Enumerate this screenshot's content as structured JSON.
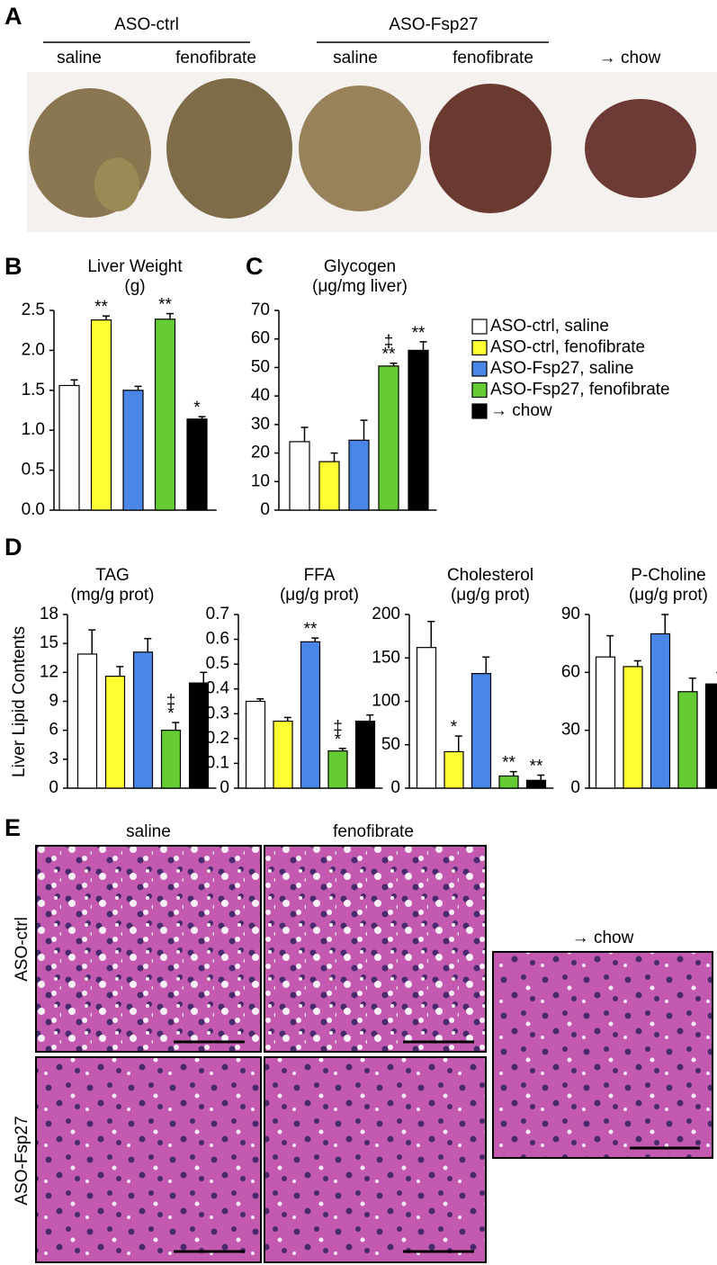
{
  "panel_labels": [
    "A",
    "B",
    "C",
    "D",
    "E"
  ],
  "photo_a": {
    "groups": [
      "ASO-ctrl",
      "ASO-Fsp27"
    ],
    "treatments": [
      [
        "saline",
        "fenofibrate"
      ],
      [
        "saline",
        "fenofibrate"
      ]
    ],
    "chow": "→ chow"
  },
  "legend": {
    "names": [
      "ASO-ctrl, saline",
      "ASO-ctrl, fenofibrate",
      "ASO-Fsp27, saline",
      "ASO-Fsp27, fenofibrate",
      "→ chow"
    ],
    "colors": [
      "#ffffff",
      "#ffff33",
      "#4a86e8",
      "#66cc33",
      "#000000"
    ]
  },
  "panel_d_ylabel": "Liver Lipid Contents",
  "chart_data": [
    {
      "type": "bar",
      "title": "Liver Weight",
      "subtitle": "(g)",
      "values": [
        1.56,
        2.38,
        1.5,
        2.39,
        1.14
      ],
      "errors": [
        0.07,
        0.05,
        0.05,
        0.07,
        0.03
      ],
      "annotations": [
        null,
        [
          "**"
        ],
        null,
        [
          "**"
        ],
        [
          "*"
        ]
      ],
      "ylim": [
        0,
        2.5
      ],
      "yticks": [
        {
          "value": 0,
          "label": "0.0"
        },
        0.5,
        {
          "value": 1,
          "label": "1.0"
        },
        1.5,
        {
          "value": 2,
          "label": "2.0"
        },
        2.5
      ]
    },
    {
      "type": "bar",
      "title": "Glycogen",
      "subtitle": "(μg/mg liver)",
      "values": [
        24,
        17,
        24.5,
        50.5,
        56
      ],
      "errors": [
        5,
        3,
        7,
        1,
        3
      ],
      "annotations": [
        null,
        null,
        null,
        [
          "‡",
          "**"
        ],
        [
          "**"
        ]
      ],
      "ylim": [
        0,
        70
      ],
      "yticks": [
        0,
        10,
        20,
        30,
        40,
        50,
        60,
        70
      ]
    },
    {
      "type": "bar",
      "title": "TAG",
      "subtitle": "(mg/g prot)",
      "values": [
        13.9,
        11.6,
        14.1,
        6.0,
        10.9
      ],
      "errors": [
        2.5,
        1.0,
        1.4,
        0.8,
        1.1
      ],
      "annotations": [
        null,
        null,
        null,
        [
          "‡",
          "*"
        ],
        null
      ],
      "ylim": [
        0,
        18
      ],
      "yticks": [
        0,
        3,
        6,
        9,
        12,
        15,
        18
      ]
    },
    {
      "type": "bar",
      "title": "FFA",
      "subtitle": "(μg/g prot)",
      "values": [
        0.35,
        0.27,
        0.59,
        0.15,
        0.27
      ],
      "errors": [
        0.01,
        0.015,
        0.015,
        0.01,
        0.025
      ],
      "annotations": [
        null,
        null,
        [
          "**"
        ],
        [
          "‡",
          "*"
        ],
        null
      ],
      "ylim": [
        0,
        0.7
      ],
      "yticks": [
        0,
        0.1,
        0.2,
        0.3,
        0.4,
        0.5,
        0.6,
        0.7
      ]
    },
    {
      "type": "bar",
      "title": "Cholesterol",
      "subtitle": "(μg/g prot)",
      "values": [
        162,
        42,
        132,
        14,
        9
      ],
      "errors": [
        30,
        18,
        19,
        5,
        6
      ],
      "annotations": [
        null,
        [
          "*"
        ],
        null,
        [
          "**"
        ],
        [
          "**"
        ]
      ],
      "ylim": [
        0,
        200
      ],
      "yticks": [
        0,
        50,
        100,
        150,
        200
      ]
    },
    {
      "type": "bar",
      "title": "P-Choline",
      "subtitle": "(μg/g prot)",
      "values": [
        68,
        63,
        80,
        50,
        54
      ],
      "errors": [
        11,
        3,
        10,
        7,
        6
      ],
      "annotations": [
        null,
        null,
        null,
        null,
        null
      ],
      "ylim": [
        0,
        90
      ],
      "yticks": [
        0,
        30,
        60,
        90
      ]
    }
  ],
  "histology_e": {
    "columns": [
      "saline",
      "fenofibrate"
    ],
    "rows": [
      "ASO-ctrl",
      "ASO-Fsp27"
    ],
    "chow": "→ chow"
  }
}
